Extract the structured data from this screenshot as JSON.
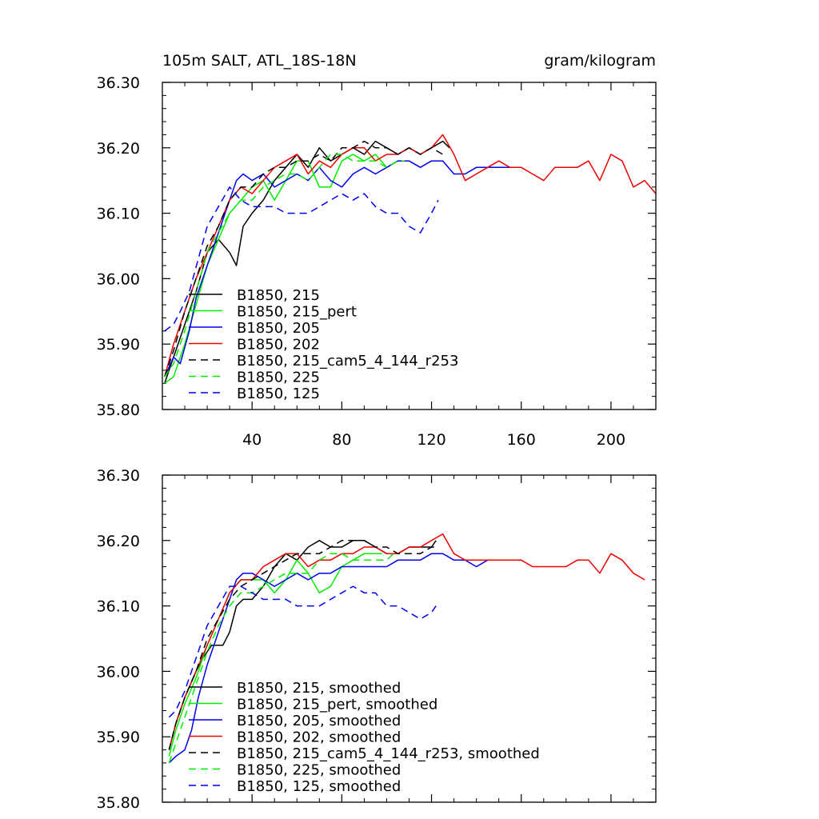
{
  "chart_data": [
    {
      "type": "line",
      "title_left": "105m SALT, ATL_18S-18N",
      "title_right": "gram/kilogram",
      "xlabel": "",
      "ylabel": "",
      "xlim": [
        0,
        220
      ],
      "ylim": [
        35.8,
        36.3
      ],
      "x_ticks": [
        40,
        80,
        120,
        160,
        200
      ],
      "x_tick_labels": [
        "40",
        "80",
        "120",
        "160",
        "200"
      ],
      "y_ticks": [
        35.8,
        35.9,
        36.0,
        36.1,
        36.2,
        36.3
      ],
      "y_tick_labels": [
        "35.80",
        "35.90",
        "36.00",
        "36.10",
        "36.20",
        "36.30"
      ],
      "grid": false,
      "legend_position": "bottom-left",
      "series": [
        {
          "name": "B1850, 215",
          "color": "#000000",
          "dash": "solid",
          "x": [
            1,
            5,
            10,
            15,
            20,
            25,
            30,
            33,
            36,
            40,
            45,
            50,
            55,
            60,
            65,
            70,
            75,
            80,
            85,
            90,
            95,
            100,
            105,
            110,
            115,
            120,
            125,
            128
          ],
          "y": [
            35.84,
            35.88,
            35.93,
            35.98,
            36.04,
            36.06,
            36.04,
            36.02,
            36.08,
            36.1,
            36.12,
            36.15,
            36.17,
            36.19,
            36.17,
            36.2,
            36.18,
            36.19,
            36.2,
            36.19,
            36.21,
            36.2,
            36.19,
            36.2,
            36.19,
            36.2,
            36.21,
            36.2
          ]
        },
        {
          "name": "B1850, 215_pert",
          "color": "#00ee00",
          "dash": "solid",
          "x": [
            1,
            5,
            10,
            15,
            20,
            25,
            30,
            35,
            40,
            45,
            50,
            55,
            60,
            65,
            70,
            75,
            80,
            85,
            90,
            95,
            100
          ],
          "y": [
            35.84,
            35.85,
            35.9,
            35.96,
            36.02,
            36.06,
            36.1,
            36.12,
            36.14,
            36.15,
            36.12,
            36.15,
            36.18,
            36.18,
            36.14,
            36.14,
            36.18,
            36.19,
            36.18,
            36.19,
            36.17
          ]
        },
        {
          "name": "B1850, 205",
          "color": "#0000ee",
          "dash": "solid",
          "x": [
            1,
            5,
            8,
            12,
            15,
            20,
            25,
            30,
            33,
            36,
            40,
            45,
            50,
            55,
            60,
            65,
            70,
            75,
            80,
            85,
            90,
            95,
            100,
            105,
            110,
            115,
            120,
            125,
            130,
            135,
            140,
            145,
            150,
            155
          ],
          "y": [
            35.85,
            35.88,
            35.87,
            35.92,
            35.97,
            36.02,
            36.07,
            36.12,
            36.15,
            36.16,
            36.15,
            36.16,
            36.14,
            36.15,
            36.16,
            36.15,
            36.17,
            36.15,
            36.14,
            36.16,
            36.17,
            36.16,
            36.17,
            36.18,
            36.18,
            36.17,
            36.18,
            36.18,
            36.16,
            36.16,
            36.17,
            36.17,
            36.17,
            36.17
          ]
        },
        {
          "name": "B1850, 202",
          "color": "#ee0000",
          "dash": "solid",
          "x": [
            1,
            5,
            10,
            15,
            20,
            25,
            30,
            35,
            40,
            45,
            50,
            55,
            60,
            65,
            70,
            75,
            80,
            85,
            90,
            95,
            100,
            105,
            110,
            115,
            120,
            125,
            130,
            135,
            140,
            145,
            150,
            155,
            160,
            165,
            170,
            175,
            180,
            185,
            190,
            195,
            200,
            205,
            210,
            215,
            220
          ],
          "y": [
            35.85,
            35.9,
            35.95,
            36.0,
            36.04,
            36.08,
            36.12,
            36.14,
            36.13,
            36.15,
            36.17,
            36.18,
            36.19,
            36.16,
            36.18,
            36.17,
            36.19,
            36.2,
            36.2,
            36.18,
            36.19,
            36.19,
            36.2,
            36.19,
            36.2,
            36.22,
            36.19,
            36.15,
            36.16,
            36.17,
            36.18,
            36.17,
            36.17,
            36.16,
            36.15,
            36.17,
            36.17,
            36.17,
            36.18,
            36.15,
            36.19,
            36.18,
            36.14,
            36.15,
            36.13
          ]
        },
        {
          "name": "B1850, 215_cam5_4_144_r253",
          "color": "#000000",
          "dash": "dashed",
          "x": [
            1,
            5,
            10,
            15,
            20,
            25,
            30,
            35,
            40,
            45,
            50,
            55,
            60,
            65,
            70,
            75,
            80,
            85,
            90,
            95,
            100,
            105,
            110,
            115,
            120,
            125
          ],
          "y": [
            35.85,
            35.89,
            35.95,
            36.0,
            36.05,
            36.08,
            36.12,
            36.14,
            36.14,
            36.16,
            36.17,
            36.17,
            36.18,
            36.18,
            36.19,
            36.18,
            36.2,
            36.2,
            36.21,
            36.2,
            36.2,
            36.19,
            36.2,
            36.19,
            36.2,
            36.19
          ]
        },
        {
          "name": "B1850, 225",
          "color": "#00ee00",
          "dash": "dashed",
          "x": [
            1,
            5,
            10,
            15,
            20,
            25,
            30,
            35,
            40,
            45,
            50,
            55,
            60,
            65,
            70,
            75,
            80,
            85,
            90,
            95,
            100,
            105,
            108
          ],
          "y": [
            35.85,
            35.87,
            35.92,
            35.98,
            36.04,
            36.07,
            36.1,
            36.12,
            36.12,
            36.14,
            36.15,
            36.16,
            36.16,
            36.15,
            36.17,
            36.19,
            36.19,
            36.18,
            36.18,
            36.18,
            36.17,
            36.18,
            36.18
          ]
        },
        {
          "name": "B1850, 125",
          "color": "#0000ee",
          "dash": "dashed",
          "x": [
            1,
            5,
            8,
            12,
            16,
            20,
            25,
            30,
            35,
            40,
            45,
            50,
            55,
            60,
            65,
            70,
            75,
            80,
            85,
            90,
            95,
            100,
            105,
            110,
            115,
            120,
            123
          ],
          "y": [
            35.92,
            35.93,
            35.95,
            35.98,
            36.03,
            36.08,
            36.11,
            36.14,
            36.12,
            36.11,
            36.11,
            36.11,
            36.1,
            36.1,
            36.1,
            36.11,
            36.12,
            36.13,
            36.12,
            36.13,
            36.11,
            36.1,
            36.1,
            36.08,
            36.07,
            36.1,
            36.12
          ]
        }
      ]
    },
    {
      "type": "line",
      "xlim": [
        0,
        220
      ],
      "ylim": [
        35.8,
        36.3
      ],
      "x_ticks": [
        40,
        80,
        120,
        160,
        200
      ],
      "y_ticks": [
        35.8,
        35.9,
        36.0,
        36.1,
        36.2,
        36.3
      ],
      "y_tick_labels": [
        "35.80",
        "35.90",
        "36.00",
        "36.10",
        "36.20",
        "36.30"
      ],
      "grid": false,
      "legend_position": "bottom-left",
      "series": [
        {
          "name": "B1850, 215, smoothed",
          "color": "#000000",
          "dash": "solid",
          "x": [
            3,
            6,
            10,
            15,
            18,
            22,
            27,
            30,
            33,
            36,
            40,
            45,
            50,
            55,
            60,
            65,
            70,
            75,
            80,
            85,
            90,
            95,
            100,
            105,
            110,
            115,
            120,
            122
          ],
          "y": [
            35.88,
            35.92,
            35.96,
            36.0,
            36.02,
            36.04,
            36.04,
            36.06,
            36.1,
            36.11,
            36.11,
            36.13,
            36.16,
            36.18,
            36.17,
            36.19,
            36.2,
            36.19,
            36.19,
            36.2,
            36.2,
            36.19,
            36.18,
            36.18,
            36.19,
            36.19,
            36.19,
            36.2
          ]
        },
        {
          "name": "B1850, 215_pert, smoothed",
          "color": "#00ee00",
          "dash": "solid",
          "x": [
            3,
            6,
            10,
            15,
            20,
            25,
            30,
            35,
            40,
            45,
            50,
            55,
            60,
            65,
            70,
            75,
            80,
            85,
            90,
            95,
            98
          ],
          "y": [
            35.87,
            35.91,
            35.95,
            35.99,
            36.04,
            36.08,
            36.12,
            36.14,
            36.14,
            36.14,
            36.12,
            36.14,
            36.17,
            36.15,
            36.12,
            36.13,
            36.16,
            36.17,
            36.18,
            36.18,
            36.18
          ]
        },
        {
          "name": "B1850, 205, smoothed",
          "color": "#0000ee",
          "dash": "solid",
          "x": [
            3,
            6,
            10,
            13,
            16,
            20,
            25,
            30,
            33,
            36,
            40,
            45,
            50,
            55,
            60,
            65,
            70,
            75,
            80,
            85,
            90,
            95,
            100,
            105,
            110,
            115,
            120,
            125,
            130,
            135,
            140,
            145,
            150,
            155
          ],
          "y": [
            35.86,
            35.87,
            35.88,
            35.91,
            35.96,
            36.01,
            36.06,
            36.11,
            36.14,
            36.15,
            36.15,
            36.14,
            36.13,
            36.14,
            36.15,
            36.14,
            36.15,
            36.15,
            36.16,
            36.16,
            36.16,
            36.16,
            36.16,
            36.17,
            36.17,
            36.17,
            36.18,
            36.18,
            36.17,
            36.17,
            36.16,
            36.17,
            36.17,
            36.17
          ]
        },
        {
          "name": "B1850, 202, smoothed",
          "color": "#ee0000",
          "dash": "solid",
          "x": [
            3,
            6,
            10,
            15,
            20,
            25,
            30,
            35,
            40,
            45,
            50,
            55,
            60,
            65,
            70,
            75,
            80,
            85,
            90,
            95,
            100,
            105,
            110,
            115,
            120,
            125,
            130,
            135,
            140,
            145,
            150,
            155,
            160,
            165,
            170,
            175,
            180,
            185,
            190,
            195,
            200,
            205,
            210,
            215
          ],
          "y": [
            35.88,
            35.92,
            35.96,
            36.0,
            36.04,
            36.08,
            36.12,
            36.14,
            36.14,
            36.16,
            36.17,
            36.18,
            36.18,
            36.16,
            36.17,
            36.17,
            36.18,
            36.18,
            36.19,
            36.19,
            36.18,
            36.18,
            36.19,
            36.19,
            36.2,
            36.21,
            36.18,
            36.17,
            36.17,
            36.17,
            36.17,
            36.17,
            36.17,
            36.16,
            36.16,
            36.16,
            36.16,
            36.17,
            36.17,
            36.15,
            36.18,
            36.17,
            36.15,
            36.14
          ]
        },
        {
          "name": "B1850, 215_cam5_4_144_r253, smoothed",
          "color": "#000000",
          "dash": "dashed",
          "x": [
            3,
            6,
            10,
            15,
            20,
            25,
            30,
            35,
            40,
            45,
            50,
            55,
            60,
            65,
            70,
            75,
            80,
            85,
            90,
            95,
            100,
            105,
            110,
            115,
            120,
            123
          ],
          "y": [
            35.88,
            35.92,
            35.96,
            36.0,
            36.05,
            36.08,
            36.11,
            36.13,
            36.14,
            36.15,
            36.16,
            36.17,
            36.18,
            36.18,
            36.18,
            36.19,
            36.2,
            36.2,
            36.2,
            36.19,
            36.19,
            36.18,
            36.18,
            36.18,
            36.19,
            36.19
          ]
        },
        {
          "name": "B1850, 225, smoothed",
          "color": "#00ee00",
          "dash": "dashed",
          "x": [
            3,
            6,
            10,
            15,
            20,
            25,
            30,
            35,
            40,
            45,
            50,
            55,
            60,
            65,
            70,
            75,
            80,
            85,
            90,
            95,
            100,
            103
          ],
          "y": [
            35.86,
            35.89,
            35.93,
            35.98,
            36.03,
            36.07,
            36.1,
            36.12,
            36.12,
            36.13,
            36.14,
            36.15,
            36.15,
            36.15,
            36.17,
            36.18,
            36.18,
            36.17,
            36.17,
            36.17,
            36.17,
            36.18
          ]
        },
        {
          "name": "B1850, 125, smoothed",
          "color": "#0000ee",
          "dash": "dashed",
          "x": [
            3,
            6,
            10,
            15,
            20,
            25,
            30,
            35,
            40,
            45,
            50,
            55,
            60,
            65,
            70,
            75,
            80,
            85,
            90,
            95,
            100,
            105,
            110,
            115,
            120,
            122
          ],
          "y": [
            35.93,
            35.94,
            35.97,
            36.02,
            36.07,
            36.1,
            36.13,
            36.13,
            36.12,
            36.11,
            36.11,
            36.11,
            36.1,
            36.1,
            36.1,
            36.11,
            36.12,
            36.13,
            36.12,
            36.12,
            36.1,
            36.1,
            36.09,
            36.08,
            36.09,
            36.1
          ]
        }
      ]
    }
  ]
}
